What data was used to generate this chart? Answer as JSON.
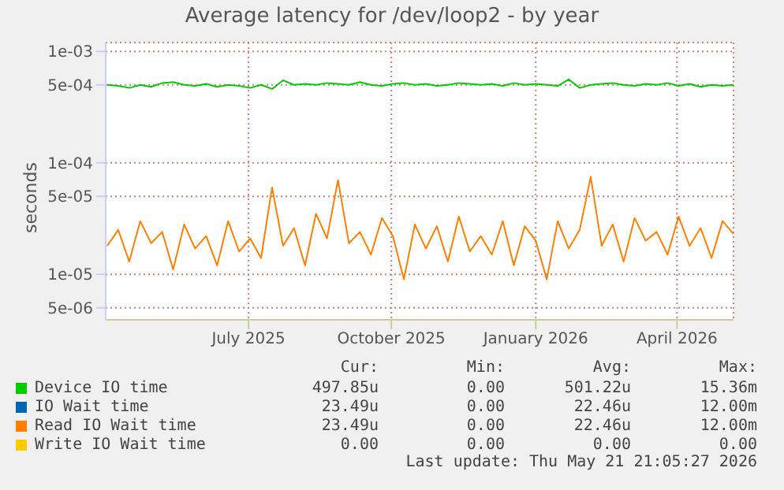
{
  "chart_data": {
    "type": "line",
    "title": "Average latency for /dev/loop2 - by year",
    "ylabel": "seconds",
    "log": true,
    "grid": true,
    "legend": "bottom",
    "x": [
      "2025-04-17",
      "2025-04-24",
      "2025-05-01",
      "2025-05-08",
      "2025-05-15",
      "2025-05-22",
      "2025-05-29",
      "2025-06-05",
      "2025-06-12",
      "2025-06-19",
      "2025-06-26",
      "2025-07-03",
      "2025-07-10",
      "2025-07-17",
      "2025-07-24",
      "2025-07-31",
      "2025-08-07",
      "2025-08-14",
      "2025-08-21",
      "2025-08-28",
      "2025-09-04",
      "2025-09-11",
      "2025-09-18",
      "2025-09-25",
      "2025-10-02",
      "2025-10-09",
      "2025-10-16",
      "2025-10-23",
      "2025-10-30",
      "2025-11-06",
      "2025-11-13",
      "2025-11-20",
      "2025-11-27",
      "2025-12-04",
      "2025-12-11",
      "2025-12-18",
      "2025-12-25",
      "2026-01-01",
      "2026-01-08",
      "2026-01-15",
      "2026-01-22",
      "2026-01-29",
      "2026-02-05",
      "2026-02-12",
      "2026-02-19",
      "2026-02-26",
      "2026-03-05",
      "2026-03-12",
      "2026-03-19",
      "2026-03-26",
      "2026-04-02",
      "2026-04-09",
      "2026-04-16",
      "2026-04-23",
      "2026-04-30",
      "2026-05-07",
      "2026-05-14",
      "2026-05-21"
    ],
    "xlim": [
      "2025-04-16",
      "2026-05-21"
    ],
    "xticks": [
      {
        "value": "2025-07-16",
        "label": "July 2025"
      },
      {
        "value": "2025-10-15",
        "label": "October 2025"
      },
      {
        "value": "2026-01-15",
        "label": "January 2026"
      },
      {
        "value": "2026-04-15",
        "label": "April 2026"
      }
    ],
    "ylim": [
      3.9e-06,
      0.0012
    ],
    "yticks": [
      {
        "value": 5e-06,
        "label": "5e-06"
      },
      {
        "value": 1e-05,
        "label": "1e-05"
      },
      {
        "value": 5e-05,
        "label": "5e-05"
      },
      {
        "value": 0.0001,
        "label": "1e-04"
      },
      {
        "value": 0.0005,
        "label": "5e-04"
      },
      {
        "value": 0.001,
        "label": "1e-03"
      }
    ],
    "series": [
      {
        "name": "Device IO time",
        "color": "#00cc00",
        "values": [
          0.0005,
          0.00049,
          0.00047,
          0.0005,
          0.00048,
          0.00052,
          0.00053,
          0.0005,
          0.00049,
          0.00051,
          0.00048,
          0.0005,
          0.00049,
          0.00047,
          0.0005,
          0.00046,
          0.00055,
          0.0005,
          0.00051,
          0.0005,
          0.00052,
          0.00051,
          0.0005,
          0.00053,
          0.0005,
          0.00049,
          0.00051,
          0.00052,
          0.0005,
          0.00051,
          0.00049,
          0.0005,
          0.00052,
          0.00051,
          0.0005,
          0.00051,
          0.00049,
          0.00052,
          0.0005,
          0.00051,
          0.0005,
          0.00049,
          0.00056,
          0.00047,
          0.0005,
          0.00051,
          0.00052,
          0.0005,
          0.00049,
          0.00051,
          0.0005,
          0.00052,
          0.00049,
          0.00051,
          0.00048,
          0.0005,
          0.00049,
          0.0005
        ]
      },
      {
        "name": "IO Wait time",
        "color": "#0066b3",
        "values": [
          null,
          null,
          null,
          null,
          null,
          null,
          null,
          null,
          null,
          null,
          null,
          null,
          null,
          null,
          null,
          null,
          null,
          null,
          null,
          null,
          null,
          null,
          null,
          null,
          null,
          null,
          null,
          null,
          null,
          null,
          null,
          null,
          null,
          null,
          null,
          null,
          null,
          null,
          null,
          null,
          null,
          null,
          null,
          null,
          null,
          null,
          null,
          null,
          null,
          null,
          null,
          null,
          null,
          null,
          null,
          null,
          null,
          null
        ]
      },
      {
        "name": "Read IO Wait time",
        "color": "#ff8000",
        "values": [
          1.8e-05,
          2.5e-05,
          1.3e-05,
          3e-05,
          1.9e-05,
          2.4e-05,
          1.1e-05,
          2.8e-05,
          1.7e-05,
          2.2e-05,
          1.2e-05,
          3e-05,
          1.6e-05,
          2.1e-05,
          1.4e-05,
          6e-05,
          1.8e-05,
          2.6e-05,
          1.2e-05,
          3.5e-05,
          2.1e-05,
          7e-05,
          1.9e-05,
          2.4e-05,
          1.5e-05,
          3.2e-05,
          2.2e-05,
          9e-06,
          2.8e-05,
          1.7e-05,
          2.7e-05,
          1.3e-05,
          3.3e-05,
          1.6e-05,
          2.2e-05,
          1.5e-05,
          3e-05,
          1.2e-05,
          2.7e-05,
          2e-05,
          9e-06,
          3e-05,
          1.7e-05,
          2.5e-05,
          7.5e-05,
          1.8e-05,
          2.8e-05,
          1.3e-05,
          3.2e-05,
          2e-05,
          2.4e-05,
          1.5e-05,
          3.3e-05,
          1.8e-05,
          2.6e-05,
          1.4e-05,
          3e-05,
          2.3e-05
        ]
      },
      {
        "name": "Write IO Wait time",
        "color": "#ffcc00",
        "values": [
          null,
          null,
          null,
          null,
          null,
          null,
          null,
          null,
          null,
          null,
          null,
          null,
          null,
          null,
          null,
          null,
          null,
          null,
          null,
          null,
          null,
          null,
          null,
          null,
          null,
          null,
          null,
          null,
          null,
          null,
          null,
          null,
          null,
          null,
          null,
          null,
          null,
          null,
          null,
          null,
          null,
          null,
          null,
          null,
          null,
          null,
          null,
          null,
          null,
          null,
          null,
          null,
          null,
          null,
          null,
          null,
          null,
          null
        ]
      }
    ],
    "annotations": [
      "Cur:",
      "Min:",
      "Avg:",
      "Max:",
      "497.85u",
      "0.00",
      "501.22u",
      "15.36m",
      "23.49u",
      "0.00",
      "22.46u",
      "12.00m",
      "23.49u",
      "0.00",
      "22.46u",
      "12.00m",
      "0.00",
      "0.00",
      "0.00",
      "0.00",
      "Last update: Thu May 21 21:05:27 2026"
    ]
  }
}
